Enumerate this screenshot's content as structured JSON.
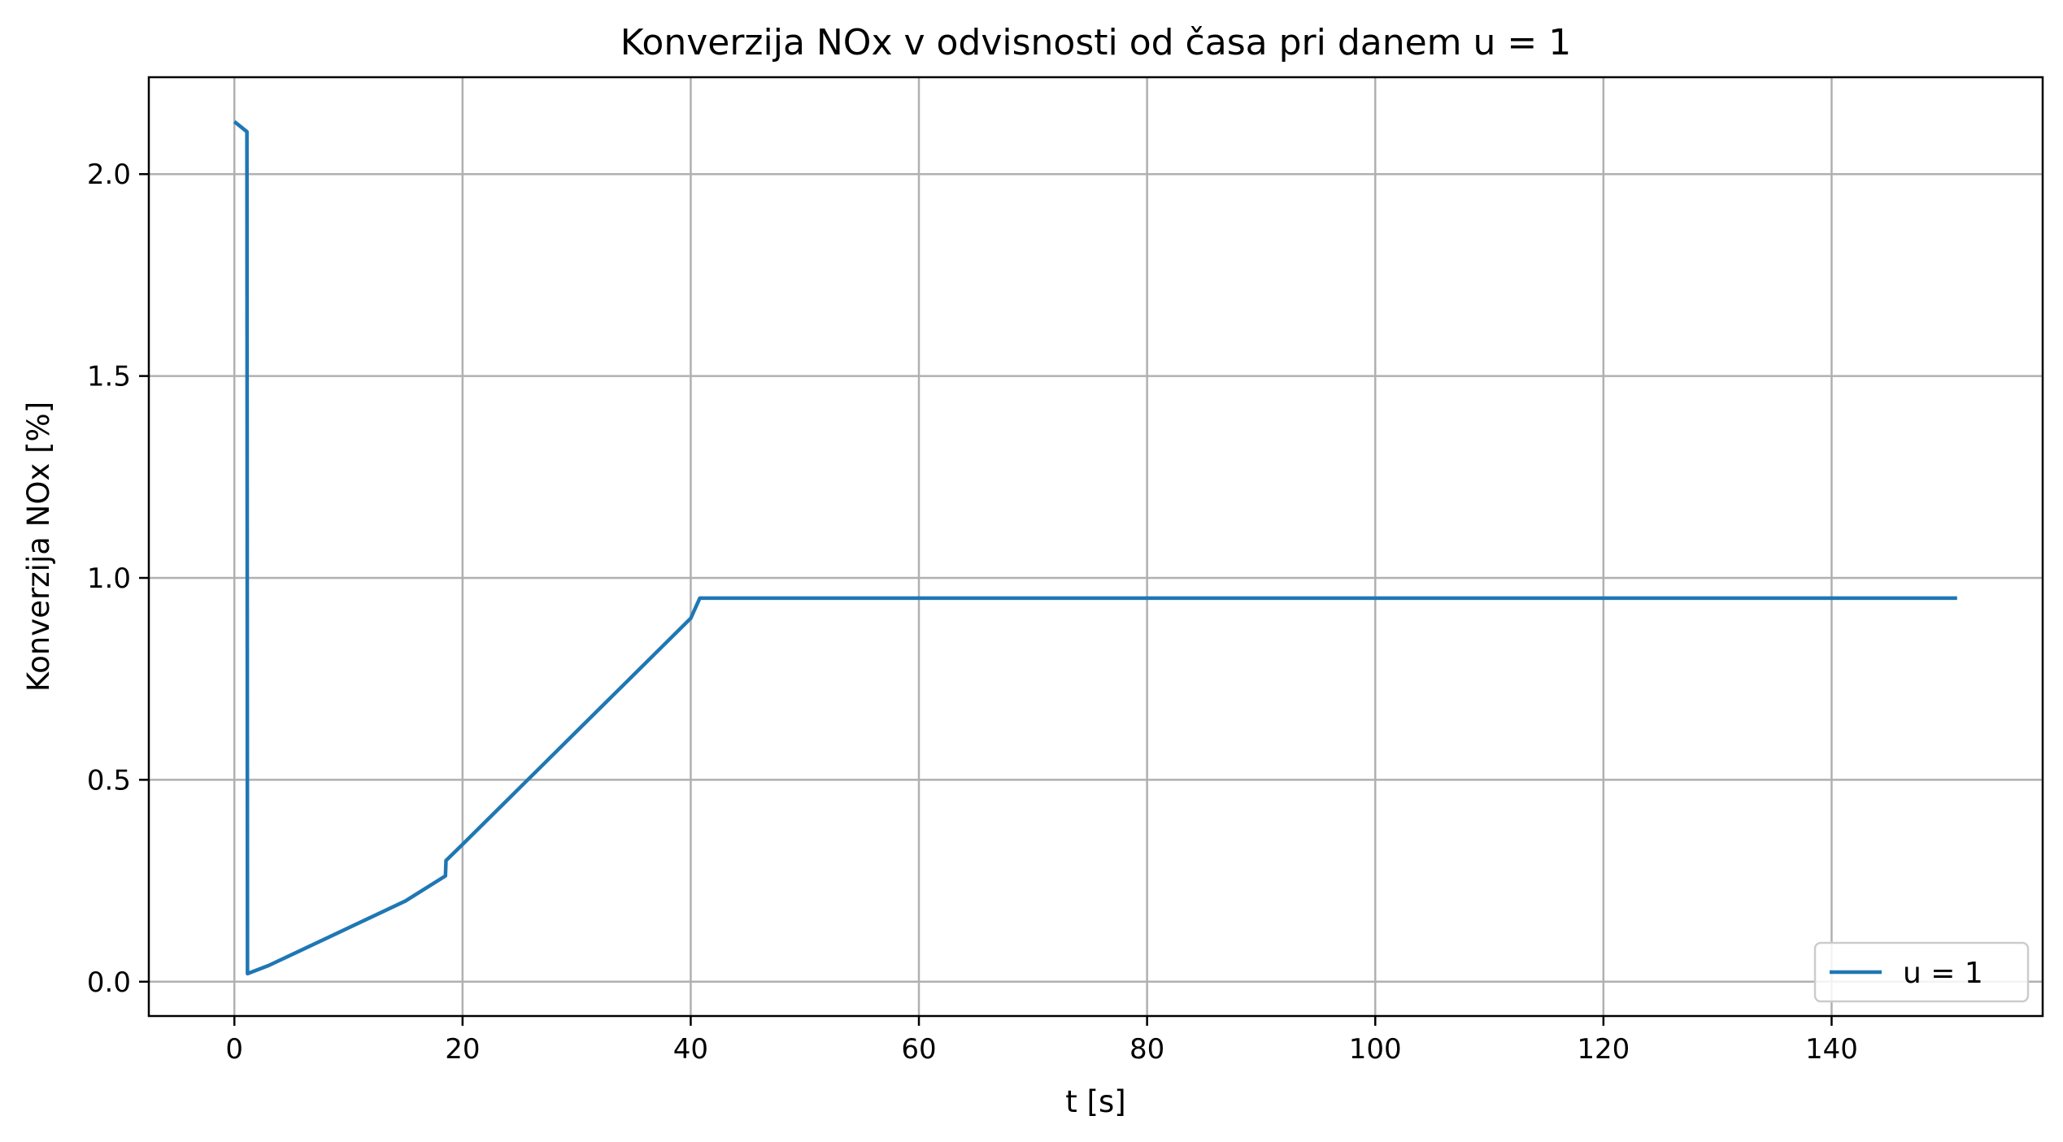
{
  "chart_data": {
    "type": "line",
    "title": "Konverzija NOx v odvisnosti od časa pri danem u = 1",
    "xlabel": "t [s]",
    "ylabel": "Konverzija NOx [%]",
    "xlim": [
      -7.5,
      158.5
    ],
    "ylim": [
      -0.085,
      2.24
    ],
    "xticks": [
      0,
      20,
      40,
      60,
      80,
      100,
      120,
      140
    ],
    "yticks": [
      0.0,
      0.5,
      1.0,
      1.5,
      2.0
    ],
    "xtick_labels": [
      "0",
      "20",
      "40",
      "60",
      "80",
      "100",
      "120",
      "140"
    ],
    "ytick_labels": [
      "0.0",
      "0.5",
      "1.0",
      "1.5",
      "2.0"
    ],
    "grid": true,
    "legend_position": "lower-right",
    "series": [
      {
        "name": "u = 1",
        "color": "#1f77b4",
        "x": [
          0,
          1.1,
          1.15,
          3,
          6,
          9,
          12,
          15,
          18.5,
          18.55,
          20,
          22.5,
          25,
          27.5,
          30,
          32.5,
          35,
          37.5,
          40,
          40.8,
          45,
          60,
          80,
          100,
          120,
          140,
          151
        ],
        "y": [
          2.13,
          2.105,
          0.02,
          0.04,
          0.08,
          0.12,
          0.16,
          0.2,
          0.262,
          0.3,
          0.34,
          0.41,
          0.48,
          0.55,
          0.62,
          0.69,
          0.76,
          0.83,
          0.9,
          0.95,
          0.95,
          0.95,
          0.95,
          0.95,
          0.95,
          0.95,
          0.95
        ]
      }
    ]
  }
}
